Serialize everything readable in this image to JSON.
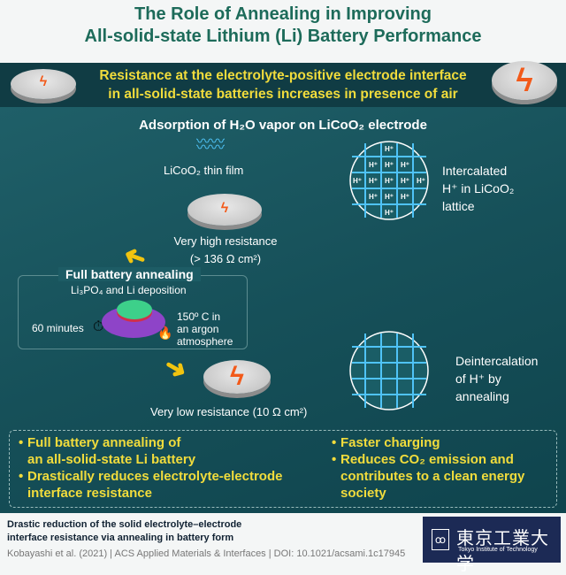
{
  "title": {
    "line1": "The Role of Annealing in Improving",
    "line2": "All-solid-state Lithium (Li) Battery Performance"
  },
  "banner": {
    "line1": "Resistance at the electrolyte-positive electrode interface",
    "line2": "in all-solid-state batteries increases in presence of air"
  },
  "adsorption": {
    "heading": "Adsorption of H₂O vapor on LiCoO₂ electrode",
    "film_label": "LiCoO₂ thin film",
    "high_res": "Very high resistance",
    "high_res_value": "(> 136 Ω cm²)"
  },
  "annealing": {
    "heading": "Full battery annealing",
    "deposition": "Li₃PO₄ and Li deposition",
    "time": "60 minutes",
    "conditions": [
      "150º C in",
      "an argon",
      "atmosphere"
    ]
  },
  "low_res": "Very low resistance (10 Ω cm²)",
  "lattice": {
    "ion": "H⁺",
    "intercalated": [
      "Intercalated",
      "H⁺ in LiCoO₂",
      "lattice"
    ],
    "deintercalated": [
      "Deintercalation",
      "of H⁺ by",
      "annealing"
    ]
  },
  "summary": {
    "left": [
      "Full battery annealing of",
      "an all-solid-state Li battery",
      "Drastically reduces electrolyte-electrode",
      "interface resistance"
    ],
    "right": [
      "Faster charging",
      "Reduces CO₂ emission and",
      "contributes to a clean energy",
      "society"
    ]
  },
  "footer": {
    "line1": "Drastic reduction of the solid electrolyte–electrode",
    "line2": "interface resistance via annealing in battery form",
    "citation": "Kobayashi et al. (2021) | ACS Applied Materials & Interfaces | DOI: 10.1021/acsami.1c17945",
    "logo_jp": "東京工業大学",
    "logo_en": "Tokyo Institute of Technology"
  },
  "colors": {
    "title": "#1d6b5a",
    "highlight": "#f1dc3c",
    "panel": "#165059",
    "bolt": "#f25a1a"
  }
}
